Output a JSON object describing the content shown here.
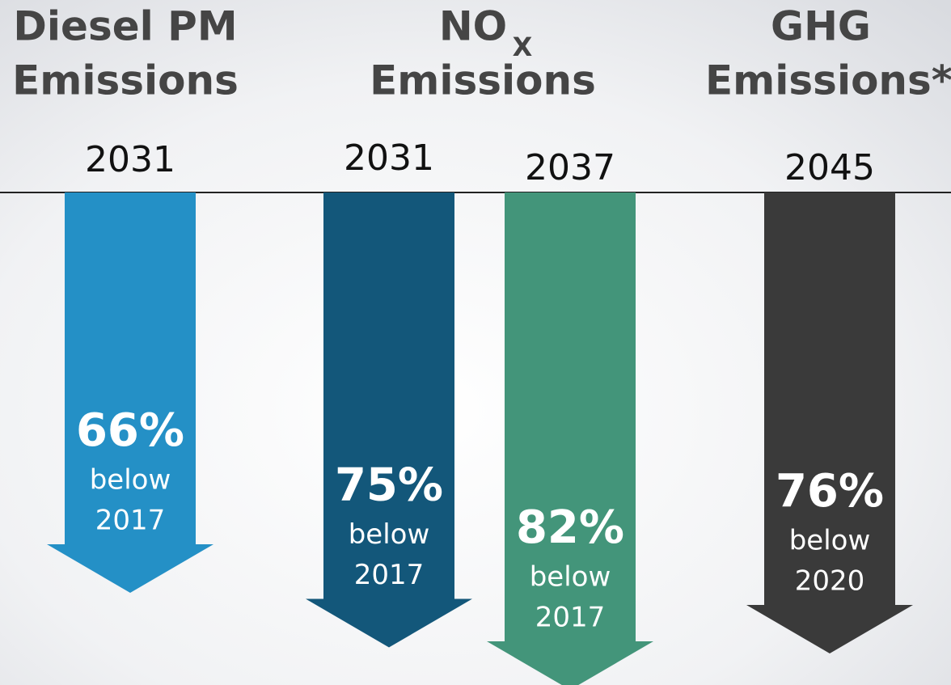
{
  "chart_data": {
    "type": "arrow",
    "groups": [
      {
        "lines": [
          "Diesel PM",
          "Emissions"
        ]
      },
      {
        "lines": [
          "NO",
          "Emissions"
        ],
        "subscript": "X"
      },
      {
        "lines": [
          "GHG",
          "Emissions*"
        ]
      }
    ],
    "categories": [
      "2031",
      "2031",
      "2037",
      "2045"
    ],
    "values": [
      66,
      75,
      82,
      76
    ],
    "value_labels": [
      "66%",
      "75%",
      "82%",
      "76%"
    ],
    "notes": [
      "below",
      "below",
      "below",
      "below"
    ],
    "baselines": [
      "2017",
      "2017",
      "2017",
      "2020"
    ],
    "colors": [
      "#2490c6",
      "#13577a",
      "#43957a",
      "#3a3a3a"
    ],
    "ylim": [
      0,
      100
    ]
  }
}
